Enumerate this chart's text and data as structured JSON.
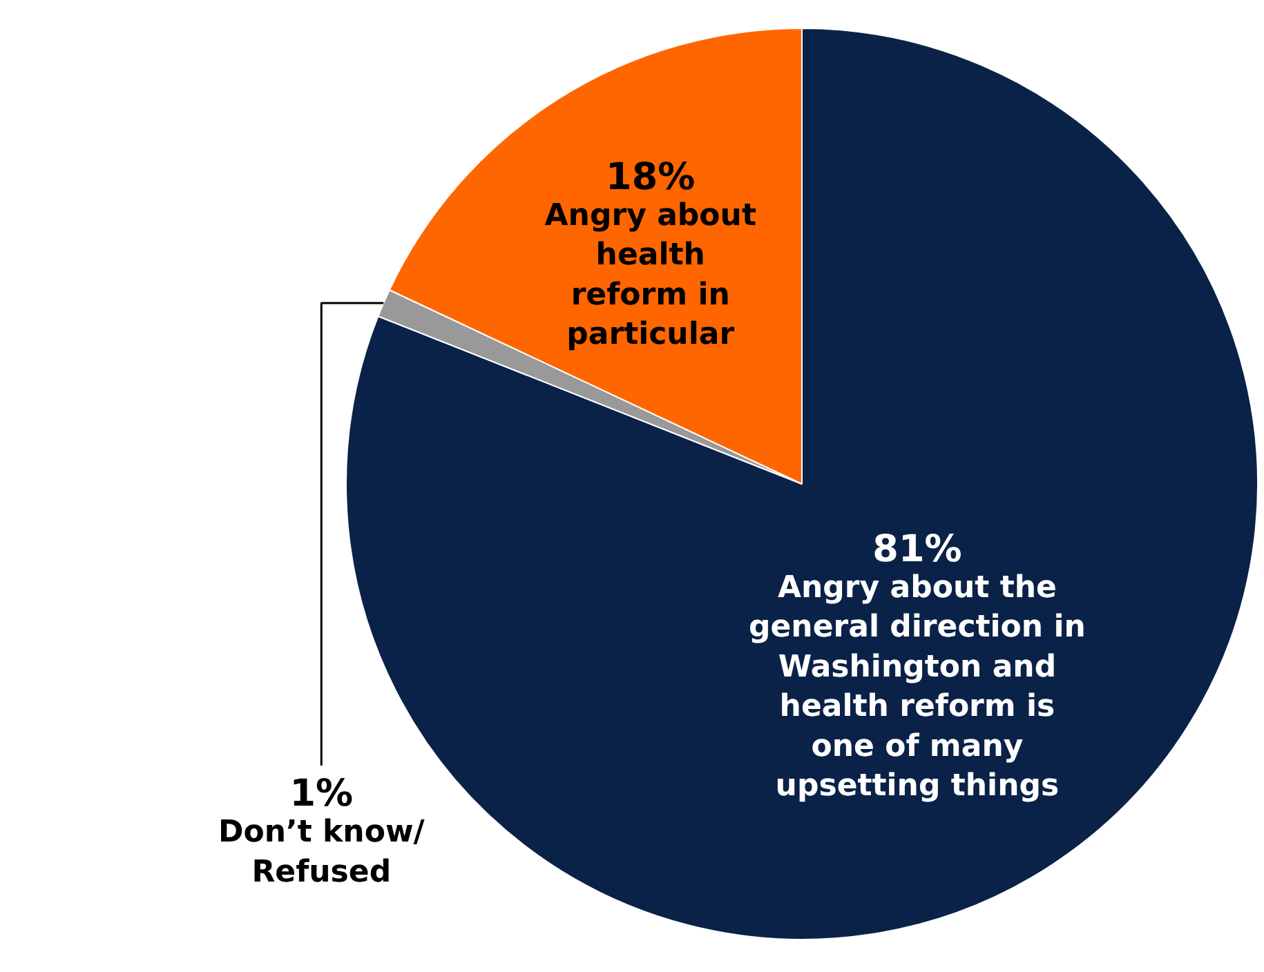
{
  "chart_data": {
    "type": "pie",
    "categories": [
      "Angry about the\ngeneral direction in\nWashington and\nhealth reform is\none of many\nupsetting things",
      "Don’t know/\nRefused",
      "Angry about\nhealth\nreform in\nparticular"
    ],
    "values": [
      81,
      1,
      18
    ],
    "colors": [
      "#0a2248",
      "#999999",
      "#ff6600"
    ],
    "value_labels": [
      "81%",
      "1%",
      "18%"
    ]
  }
}
